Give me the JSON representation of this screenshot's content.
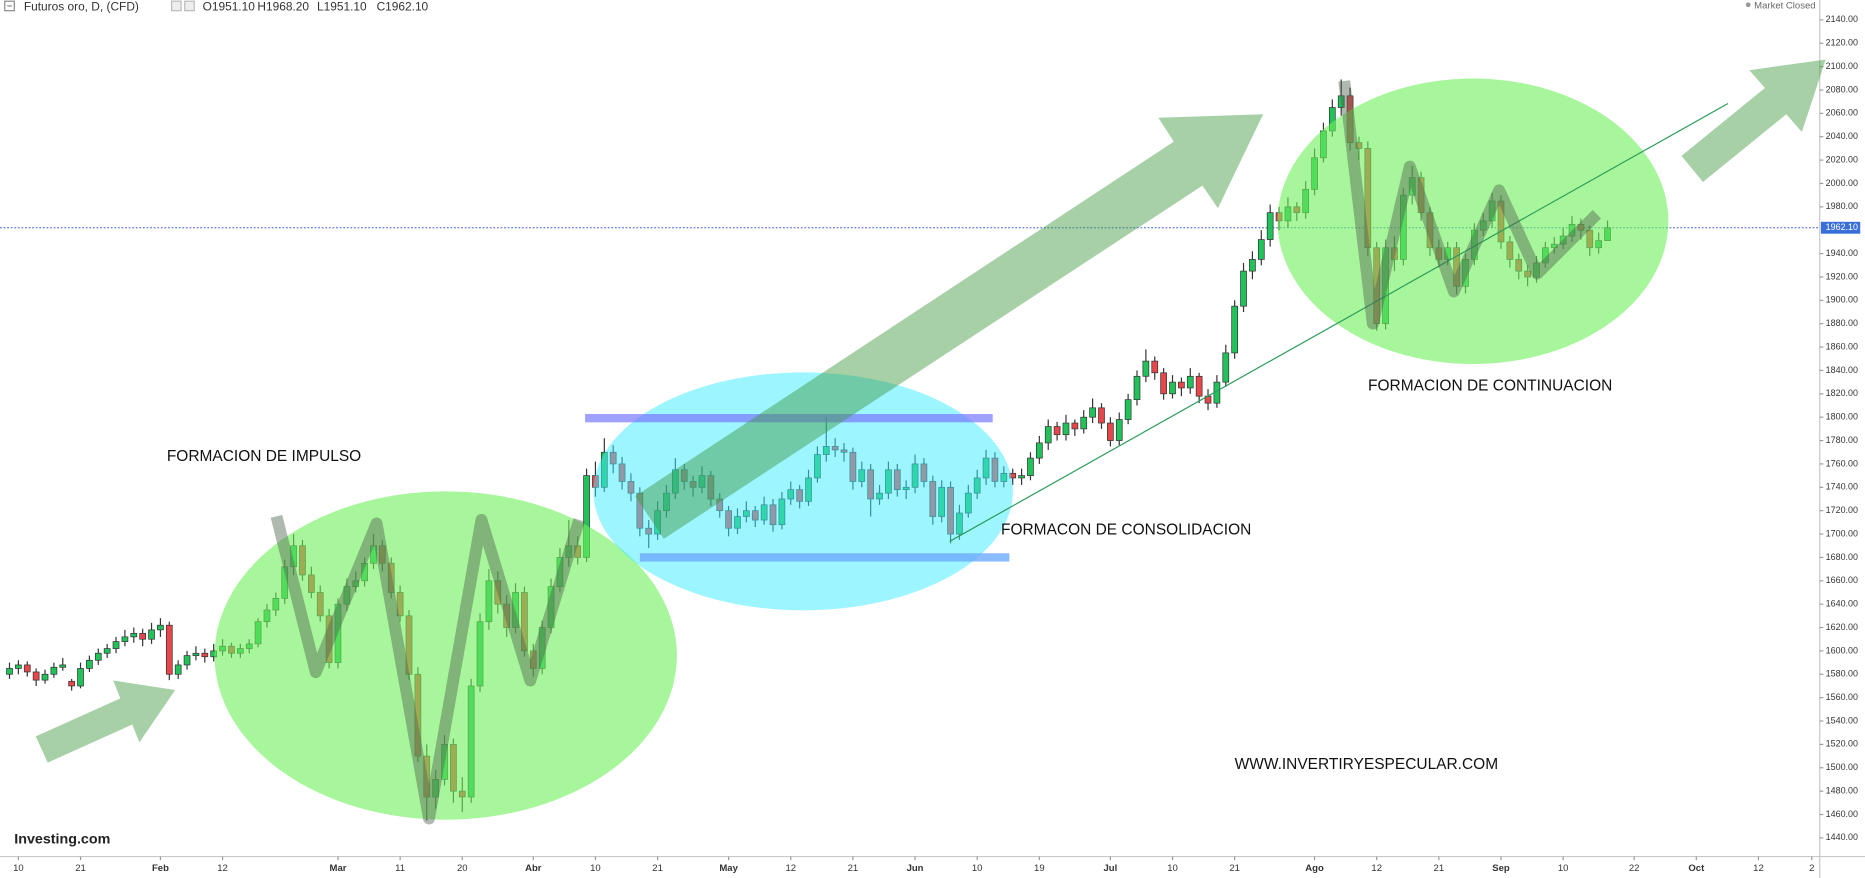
{
  "chart_data": {
    "type": "candlestick",
    "title": "Futuros oro, D, (CFD)",
    "ohlc_labels": [
      "O1951.10",
      "H1968.20",
      "L1951.10",
      "C1962.10"
    ],
    "status": "Market Closed",
    "logo": "Investing.com",
    "up_color": "#22c25a",
    "down_color": "#e5474b",
    "annotations": [
      "FORMACION DE IMPULSO",
      "FORMACON DE CONSOLIDACION",
      "FORMACION DE CONTINUACION",
      "WWW.INVERTIRYESPECULAR.COM"
    ],
    "last_price": {
      "value": 1962.1,
      "label": "1962.10"
    },
    "xlim": [
      -1.07,
      203.9
    ],
    "xticks": [
      {
        "value": 1,
        "label": "10"
      },
      {
        "value": 8,
        "label": "21"
      },
      {
        "value": 17,
        "label": "Feb"
      },
      {
        "value": 24,
        "label": "12"
      },
      {
        "value": 37,
        "label": "Mar"
      },
      {
        "value": 44,
        "label": "11"
      },
      {
        "value": 51,
        "label": "20"
      },
      {
        "value": 59,
        "label": "Abr"
      },
      {
        "value": 66,
        "label": "10"
      },
      {
        "value": 73,
        "label": "21"
      },
      {
        "value": 81,
        "label": "May"
      },
      {
        "value": 88,
        "label": "12"
      },
      {
        "value": 95,
        "label": "21"
      },
      {
        "value": 102,
        "label": "Jun"
      },
      {
        "value": 109,
        "label": "10"
      },
      {
        "value": 116,
        "label": "19"
      },
      {
        "value": 124,
        "label": "Jul"
      },
      {
        "value": 131,
        "label": "10"
      },
      {
        "value": 138,
        "label": "21"
      },
      {
        "value": 147,
        "label": "Ago"
      },
      {
        "value": 154,
        "label": "12"
      },
      {
        "value": 161,
        "label": "21"
      },
      {
        "value": 168,
        "label": "Sep"
      },
      {
        "value": 175,
        "label": "10"
      },
      {
        "value": 183,
        "label": "22"
      },
      {
        "value": 190,
        "label": "Oct"
      },
      {
        "value": 197,
        "label": "12"
      },
      {
        "value": 203,
        "label": "2"
      }
    ],
    "ylim": [
      1424,
      2157
    ],
    "yticks": [
      {
        "value": 1440,
        "label": "1440.00"
      },
      {
        "value": 1460,
        "label": "1460.00"
      },
      {
        "value": 1480,
        "label": "1480.00"
      },
      {
        "value": 1500,
        "label": "1500.00"
      },
      {
        "value": 1520,
        "label": "1520.00"
      },
      {
        "value": 1540,
        "label": "1540.00"
      },
      {
        "value": 1560,
        "label": "1560.00"
      },
      {
        "value": 1580,
        "label": "1580.00"
      },
      {
        "value": 1600,
        "label": "1600.00"
      },
      {
        "value": 1620,
        "label": "1620.00"
      },
      {
        "value": 1640,
        "label": "1640.00"
      },
      {
        "value": 1660,
        "label": "1660.00"
      },
      {
        "value": 1680,
        "label": "1680.00"
      },
      {
        "value": 1700,
        "label": "1700.00"
      },
      {
        "value": 1720,
        "label": "1720.00"
      },
      {
        "value": 1740,
        "label": "1740.00"
      },
      {
        "value": 1760,
        "label": "1760.00"
      },
      {
        "value": 1780,
        "label": "1780.00"
      },
      {
        "value": 1800,
        "label": "1800.00"
      },
      {
        "value": 1820,
        "label": "1820.00"
      },
      {
        "value": 1840,
        "label": "1840.00"
      },
      {
        "value": 1860,
        "label": "1860.00"
      },
      {
        "value": 1880,
        "label": "1880.00"
      },
      {
        "value": 1900,
        "label": "1900.00"
      },
      {
        "value": 1920,
        "label": "1920.00"
      },
      {
        "value": 1940,
        "label": "1940.00"
      },
      {
        "value": 1980,
        "label": "1980.00"
      },
      {
        "value": 2000,
        "label": "2000.00"
      },
      {
        "value": 2020,
        "label": "2020.00"
      },
      {
        "value": 2040,
        "label": "2040.00"
      },
      {
        "value": 2060,
        "label": "2060.00"
      },
      {
        "value": 2080,
        "label": "2080.00"
      },
      {
        "value": 2100,
        "label": "2100.00"
      },
      {
        "value": 2120,
        "label": "2120.00"
      },
      {
        "value": 2140,
        "label": "2140.00"
      }
    ],
    "candles": [
      [
        1580,
        1590,
        1576,
        1585
      ],
      [
        1585,
        1592,
        1580,
        1588
      ],
      [
        1588,
        1591,
        1578,
        1582
      ],
      [
        1582,
        1585,
        1570,
        1575
      ],
      [
        1575,
        1584,
        1572,
        1580
      ],
      [
        1580,
        1590,
        1577,
        1586
      ],
      [
        1586,
        1594,
        1583,
        1588
      ],
      [
        1574,
        1576,
        1566,
        1570
      ],
      [
        1570,
        1590,
        1568,
        1585
      ],
      [
        1585,
        1596,
        1582,
        1592
      ],
      [
        1592,
        1602,
        1588,
        1598
      ],
      [
        1598,
        1606,
        1594,
        1602
      ],
      [
        1602,
        1612,
        1598,
        1608
      ],
      [
        1608,
        1618,
        1604,
        1612
      ],
      [
        1612,
        1620,
        1607,
        1615
      ],
      [
        1615,
        1619,
        1604,
        1610
      ],
      [
        1610,
        1624,
        1606,
        1618
      ],
      [
        1618,
        1628,
        1612,
        1622
      ],
      [
        1622,
        1625,
        1575,
        1580
      ],
      [
        1580,
        1592,
        1576,
        1588
      ],
      [
        1588,
        1600,
        1584,
        1596
      ],
      [
        1596,
        1604,
        1592,
        1598
      ],
      [
        1598,
        1602,
        1590,
        1595
      ],
      [
        1595,
        1606,
        1591,
        1600
      ],
      [
        1600,
        1610,
        1596,
        1604
      ],
      [
        1604,
        1607,
        1594,
        1598
      ],
      [
        1598,
        1606,
        1594,
        1602
      ],
      [
        1602,
        1610,
        1598,
        1606
      ],
      [
        1606,
        1628,
        1603,
        1625
      ],
      [
        1625,
        1640,
        1620,
        1635
      ],
      [
        1635,
        1650,
        1630,
        1645
      ],
      [
        1645,
        1678,
        1640,
        1672
      ],
      [
        1672,
        1700,
        1665,
        1690
      ],
      [
        1690,
        1695,
        1660,
        1665
      ],
      [
        1665,
        1672,
        1645,
        1650
      ],
      [
        1650,
        1656,
        1625,
        1630
      ],
      [
        1630,
        1636,
        1585,
        1590
      ],
      [
        1590,
        1645,
        1585,
        1640
      ],
      [
        1640,
        1662,
        1634,
        1655
      ],
      [
        1655,
        1668,
        1650,
        1660
      ],
      [
        1660,
        1680,
        1655,
        1675
      ],
      [
        1675,
        1700,
        1670,
        1690
      ],
      [
        1690,
        1695,
        1668,
        1675
      ],
      [
        1675,
        1680,
        1645,
        1650
      ],
      [
        1650,
        1656,
        1625,
        1630
      ],
      [
        1630,
        1635,
        1575,
        1580
      ],
      [
        1580,
        1586,
        1505,
        1510
      ],
      [
        1510,
        1520,
        1455,
        1475
      ],
      [
        1475,
        1498,
        1465,
        1490
      ],
      [
        1490,
        1528,
        1485,
        1520
      ],
      [
        1520,
        1525,
        1470,
        1480
      ],
      [
        1480,
        1492,
        1462,
        1475
      ],
      [
        1475,
        1576,
        1470,
        1570
      ],
      [
        1570,
        1632,
        1565,
        1625
      ],
      [
        1625,
        1670,
        1618,
        1660
      ],
      [
        1660,
        1668,
        1632,
        1640
      ],
      [
        1640,
        1648,
        1612,
        1620
      ],
      [
        1620,
        1658,
        1615,
        1650
      ],
      [
        1650,
        1655,
        1595,
        1600
      ],
      [
        1600,
        1606,
        1578,
        1585
      ],
      [
        1585,
        1626,
        1580,
        1620
      ],
      [
        1620,
        1662,
        1615,
        1655
      ],
      [
        1655,
        1688,
        1650,
        1680
      ],
      [
        1680,
        1712,
        1672,
        1690
      ],
      [
        1690,
        1698,
        1674,
        1680
      ],
      [
        1680,
        1756,
        1676,
        1750
      ],
      [
        1750,
        1762,
        1732,
        1740
      ],
      [
        1740,
        1782,
        1736,
        1770
      ],
      [
        1770,
        1776,
        1752,
        1760
      ],
      [
        1760,
        1766,
        1738,
        1745
      ],
      [
        1745,
        1752,
        1728,
        1735
      ],
      [
        1735,
        1740,
        1698,
        1705
      ],
      [
        1705,
        1712,
        1688,
        1700
      ],
      [
        1700,
        1728,
        1695,
        1720
      ],
      [
        1720,
        1742,
        1714,
        1735
      ],
      [
        1735,
        1765,
        1730,
        1755
      ],
      [
        1755,
        1760,
        1738,
        1745
      ],
      [
        1745,
        1750,
        1732,
        1740
      ],
      [
        1740,
        1758,
        1735,
        1750
      ],
      [
        1750,
        1754,
        1724,
        1730
      ],
      [
        1730,
        1735,
        1714,
        1720
      ],
      [
        1720,
        1724,
        1698,
        1705
      ],
      [
        1705,
        1722,
        1700,
        1715
      ],
      [
        1715,
        1728,
        1710,
        1720
      ],
      [
        1720,
        1724,
        1706,
        1712
      ],
      [
        1712,
        1732,
        1708,
        1725
      ],
      [
        1725,
        1730,
        1702,
        1708
      ],
      [
        1708,
        1736,
        1704,
        1730
      ],
      [
        1730,
        1745,
        1725,
        1738
      ],
      [
        1738,
        1742,
        1722,
        1728
      ],
      [
        1728,
        1755,
        1724,
        1748
      ],
      [
        1748,
        1775,
        1744,
        1768
      ],
      [
        1768,
        1800,
        1762,
        1775
      ],
      [
        1775,
        1782,
        1766,
        1772
      ],
      [
        1772,
        1778,
        1762,
        1770
      ],
      [
        1770,
        1774,
        1738,
        1745
      ],
      [
        1745,
        1762,
        1740,
        1755
      ],
      [
        1755,
        1760,
        1715,
        1730
      ],
      [
        1730,
        1742,
        1725,
        1735
      ],
      [
        1735,
        1762,
        1730,
        1755
      ],
      [
        1755,
        1760,
        1732,
        1738
      ],
      [
        1738,
        1746,
        1730,
        1740
      ],
      [
        1740,
        1768,
        1735,
        1760
      ],
      [
        1760,
        1765,
        1740,
        1745
      ],
      [
        1745,
        1750,
        1708,
        1715
      ],
      [
        1715,
        1746,
        1710,
        1740
      ],
      [
        1740,
        1745,
        1692,
        1700
      ],
      [
        1700,
        1725,
        1695,
        1718
      ],
      [
        1718,
        1742,
        1714,
        1735
      ],
      [
        1735,
        1755,
        1730,
        1748
      ],
      [
        1748,
        1772,
        1742,
        1765
      ],
      [
        1765,
        1770,
        1740,
        1745
      ],
      [
        1745,
        1758,
        1740,
        1752
      ],
      [
        1752,
        1756,
        1742,
        1748
      ],
      [
        1748,
        1756,
        1742,
        1750
      ],
      [
        1750,
        1770,
        1746,
        1765
      ],
      [
        1765,
        1784,
        1760,
        1778
      ],
      [
        1778,
        1798,
        1772,
        1792
      ],
      [
        1792,
        1796,
        1780,
        1785
      ],
      [
        1785,
        1802,
        1780,
        1795
      ],
      [
        1795,
        1798,
        1784,
        1790
      ],
      [
        1790,
        1806,
        1786,
        1800
      ],
      [
        1800,
        1816,
        1795,
        1808
      ],
      [
        1808,
        1812,
        1790,
        1795
      ],
      [
        1795,
        1800,
        1775,
        1780
      ],
      [
        1780,
        1804,
        1776,
        1798
      ],
      [
        1798,
        1820,
        1794,
        1815
      ],
      [
        1815,
        1840,
        1810,
        1835
      ],
      [
        1835,
        1858,
        1830,
        1848
      ],
      [
        1848,
        1852,
        1832,
        1838
      ],
      [
        1838,
        1842,
        1815,
        1820
      ],
      [
        1820,
        1836,
        1816,
        1830
      ],
      [
        1830,
        1834,
        1818,
        1825
      ],
      [
        1825,
        1842,
        1820,
        1835
      ],
      [
        1835,
        1838,
        1812,
        1818
      ],
      [
        1818,
        1824,
        1806,
        1812
      ],
      [
        1812,
        1836,
        1808,
        1830
      ],
      [
        1830,
        1862,
        1826,
        1855
      ],
      [
        1855,
        1900,
        1850,
        1895
      ],
      [
        1895,
        1932,
        1890,
        1925
      ],
      [
        1925,
        1942,
        1918,
        1935
      ],
      [
        1935,
        1960,
        1930,
        1952
      ],
      [
        1952,
        1982,
        1946,
        1975
      ],
      [
        1975,
        1980,
        1960,
        1968
      ],
      [
        1968,
        1988,
        1962,
        1980
      ],
      [
        1980,
        1984,
        1968,
        1975
      ],
      [
        1975,
        2002,
        1970,
        1995
      ],
      [
        1995,
        2030,
        1990,
        2022
      ],
      [
        2022,
        2052,
        2018,
        2045
      ],
      [
        2045,
        2072,
        2040,
        2065
      ],
      [
        2065,
        2089,
        2058,
        2075
      ],
      [
        2075,
        2082,
        2028,
        2035
      ],
      [
        2035,
        2040,
        2020,
        2030
      ],
      [
        2030,
        2036,
        1938,
        1945
      ],
      [
        1945,
        1950,
        1874,
        1880
      ],
      [
        1880,
        1952,
        1875,
        1945
      ],
      [
        1945,
        1955,
        1925,
        1935
      ],
      [
        1935,
        1996,
        1930,
        1990
      ],
      [
        1990,
        2015,
        1982,
        2005
      ],
      [
        2005,
        2010,
        1968,
        1975
      ],
      [
        1975,
        1980,
        1938,
        1945
      ],
      [
        1945,
        1952,
        1928,
        1935
      ],
      [
        1935,
        1950,
        1930,
        1945
      ],
      [
        1945,
        1950,
        1905,
        1912
      ],
      [
        1912,
        1940,
        1906,
        1935
      ],
      [
        1935,
        1966,
        1930,
        1960
      ],
      [
        1960,
        1975,
        1955,
        1968
      ],
      [
        1968,
        1992,
        1962,
        1985
      ],
      [
        1985,
        1990,
        1944,
        1950
      ],
      [
        1950,
        1955,
        1928,
        1935
      ],
      [
        1935,
        1940,
        1918,
        1925
      ],
      [
        1925,
        1930,
        1912,
        1920
      ],
      [
        1920,
        1938,
        1915,
        1932
      ],
      [
        1932,
        1950,
        1928,
        1945
      ],
      [
        1945,
        1954,
        1940,
        1948
      ],
      [
        1948,
        1962,
        1944,
        1955
      ],
      [
        1955,
        1972,
        1950,
        1965
      ],
      [
        1965,
        1970,
        1952,
        1960
      ],
      [
        1960,
        1964,
        1938,
        1945
      ],
      [
        1945,
        1958,
        1940,
        1951.1
      ],
      [
        1951.1,
        1968.2,
        1951.1,
        1962.1
      ]
    ]
  }
}
